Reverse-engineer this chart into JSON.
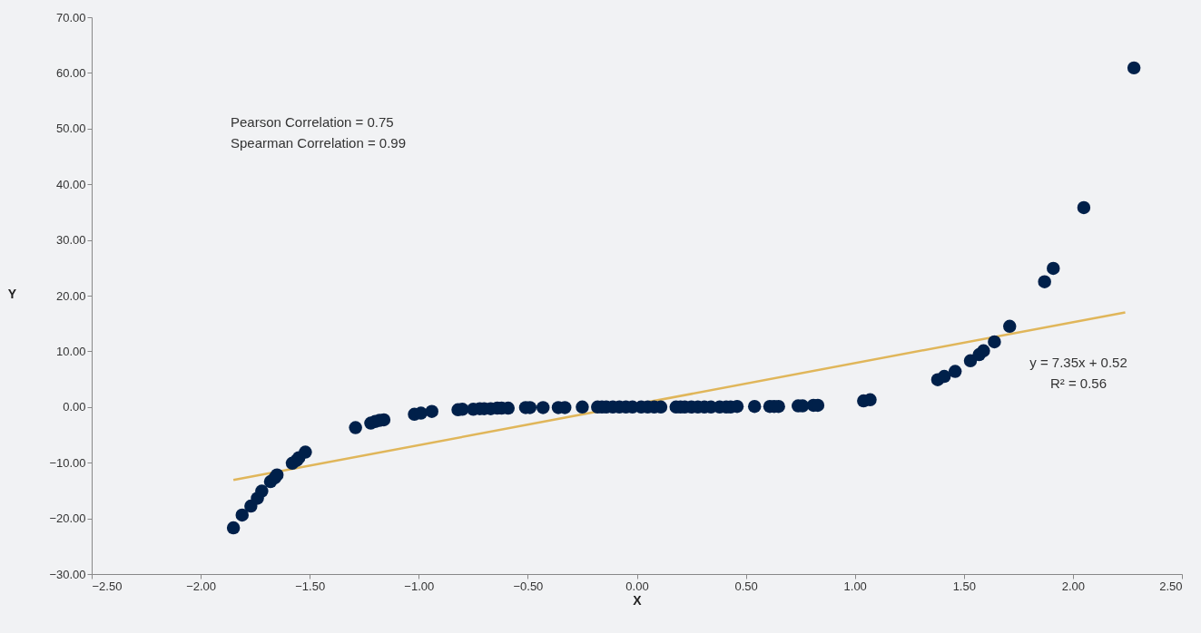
{
  "chart_data": {
    "type": "scatter",
    "xlabel": "X",
    "ylabel": "Y",
    "xlim": [
      -2.5,
      2.5
    ],
    "ylim": [
      -30,
      70
    ],
    "xticks": [
      {
        "value": -2.5,
        "label": "−2.50"
      },
      {
        "value": -2,
        "label": "−2.00"
      },
      {
        "value": -1.5,
        "label": "−1.50"
      },
      {
        "value": -1,
        "label": "−1.00"
      },
      {
        "value": -0.5,
        "label": "−0.50"
      },
      {
        "value": 0,
        "label": "0.00"
      },
      {
        "value": 0.5,
        "label": "0.50"
      },
      {
        "value": 1,
        "label": "1.00"
      },
      {
        "value": 1.5,
        "label": "1.50"
      },
      {
        "value": 2,
        "label": "2.00"
      },
      {
        "value": 2.5,
        "label": "2.50"
      }
    ],
    "yticks": [
      {
        "value": -30,
        "label": "−30.00"
      },
      {
        "value": -20,
        "label": "−20.00"
      },
      {
        "value": -10,
        "label": "−10.00"
      },
      {
        "value": 0,
        "label": "0.00"
      },
      {
        "value": 10,
        "label": "10.00"
      },
      {
        "value": 20,
        "label": "20.00"
      },
      {
        "value": 30,
        "label": "30.00"
      },
      {
        "value": 40,
        "label": "40.00"
      },
      {
        "value": 50,
        "label": "50.00"
      },
      {
        "value": 60,
        "label": "60.00"
      },
      {
        "value": 70,
        "label": "70.00"
      }
    ],
    "grid": false,
    "series": [
      {
        "marker": "circle",
        "color": "#00204a",
        "x": [
          -1.85,
          -1.81,
          -1.77,
          -1.74,
          -1.72,
          -1.68,
          -1.66,
          -1.65,
          -1.58,
          -1.56,
          -1.55,
          -1.52,
          -1.29,
          -1.22,
          -1.2,
          -1.18,
          -1.16,
          -1.02,
          -0.99,
          -0.94,
          -0.82,
          -0.8,
          -0.75,
          -0.72,
          -0.7,
          -0.67,
          -0.64,
          -0.62,
          -0.59,
          -0.51,
          -0.49,
          -0.43,
          -0.36,
          -0.33,
          -0.25,
          -0.18,
          -0.16,
          -0.14,
          -0.11,
          -0.08,
          -0.05,
          -0.02,
          0.02,
          0.05,
          0.08,
          0.11,
          0.18,
          0.2,
          0.22,
          0.25,
          0.28,
          0.31,
          0.34,
          0.38,
          0.41,
          0.43,
          0.46,
          0.54,
          0.61,
          0.63,
          0.65,
          0.74,
          0.76,
          0.81,
          0.83,
          1.04,
          1.07,
          1.38,
          1.41,
          1.46,
          1.53,
          1.57,
          1.59,
          1.64,
          1.71,
          1.87,
          1.91,
          2.05,
          2.28
        ],
        "values": [
          -21.7,
          -19.4,
          -17.8,
          -16.4,
          -15.1,
          -13.4,
          -12.7,
          -12.2,
          -10.1,
          -9.6,
          -9.1,
          -8.1,
          -3.7,
          -2.9,
          -2.6,
          -2.4,
          -2.3,
          -1.3,
          -1.1,
          -0.8,
          -0.5,
          -0.4,
          -0.4,
          -0.3,
          -0.3,
          -0.3,
          -0.2,
          -0.2,
          -0.2,
          -0.1,
          -0.1,
          -0.1,
          -0.1,
          -0.1,
          0,
          0,
          0,
          0,
          0,
          0,
          0,
          0,
          0,
          0,
          0,
          0,
          0,
          0,
          0,
          0,
          0,
          0,
          0,
          0,
          0,
          0,
          0.1,
          0.1,
          0.1,
          0.1,
          0.1,
          0.2,
          0.2,
          0.3,
          0.3,
          1.1,
          1.3,
          4.9,
          5.5,
          6.4,
          8.3,
          9.4,
          10.1,
          11.7,
          14.5,
          22.5,
          24.9,
          35.8,
          60.9
        ]
      },
      {
        "type": "line",
        "color": "#e0b65a",
        "x": [
          -1.85,
          2.24
        ],
        "values": [
          -13.1,
          17.0
        ]
      }
    ],
    "annotations": [
      "Pearson Correlation = 0.75",
      "Spearman Correlation = 0.99",
      "y = 7.35x + 0.52",
      "R² = 0.56"
    ]
  }
}
